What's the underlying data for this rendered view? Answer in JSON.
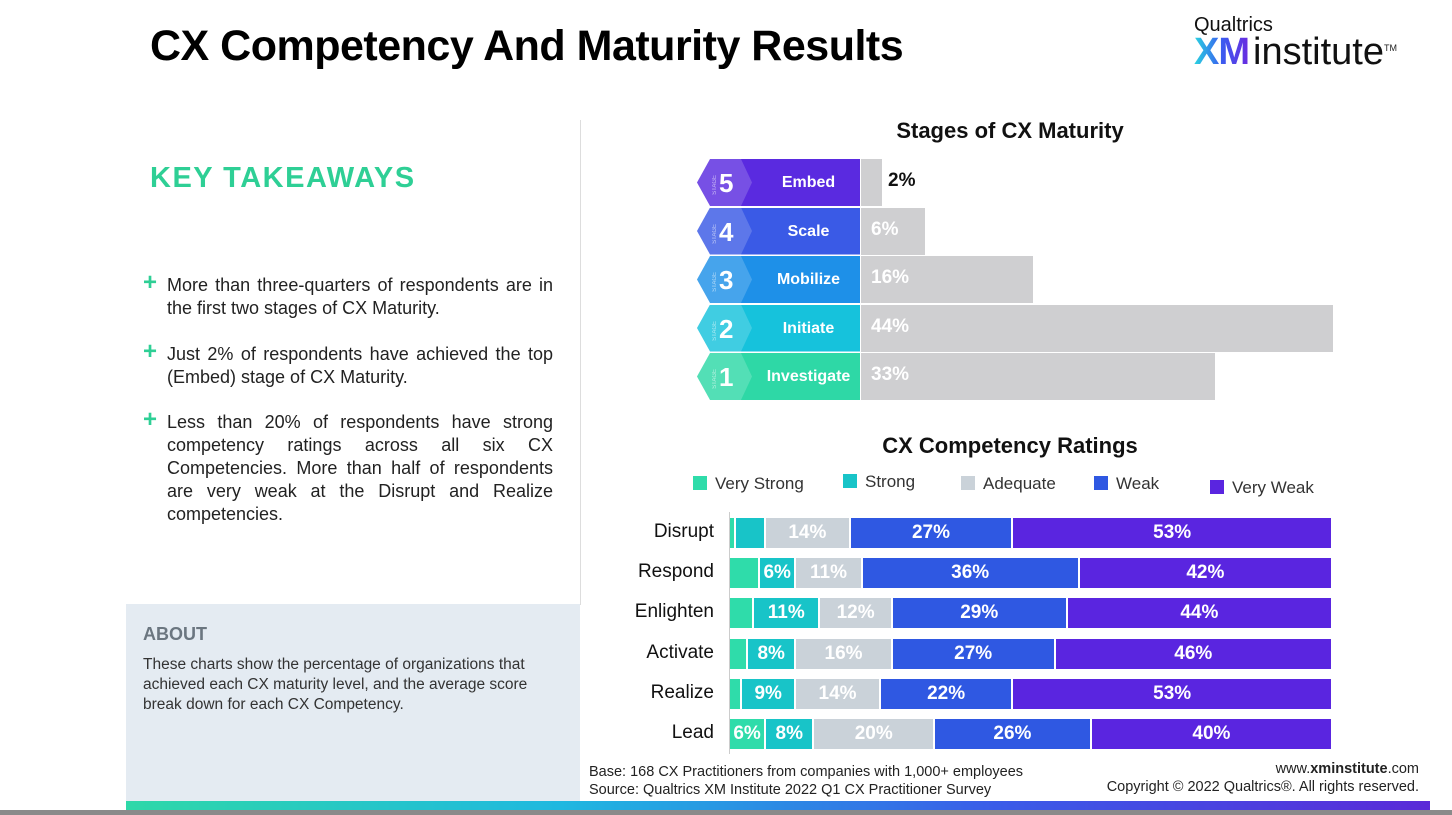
{
  "title": "CX Competency And Maturity Results",
  "logo": {
    "top": "Qualtrics",
    "xm": "XM",
    "institute": "institute",
    "tm": "TM"
  },
  "takeaways": {
    "heading": "KEY TAKEAWAYS",
    "bullets": [
      "More than three-quarters of respondents are in the first two stages of CX Maturity.",
      "Just 2% of respondents have achieved the top (Embed) stage of CX Maturity.",
      "Less than 20% of respondents have strong competency ratings across all six CX Competencies. More than half of respondents are very weak at the Disrupt and Realize competencies."
    ],
    "bullet_icon": "+"
  },
  "about": {
    "heading": "ABOUT",
    "text": "These charts show the percentage of organizations that achieved each CX maturity level, and the average score break down for each CX Competency."
  },
  "chart_data": [
    {
      "type": "bar",
      "title": "Stages of CX Maturity",
      "stage_word": "STAGE",
      "categories": [
        "Embed",
        "Scale",
        "Mobilize",
        "Initiate",
        "Investigate"
      ],
      "stages": [
        "5",
        "4",
        "3",
        "2",
        "1"
      ],
      "values": [
        2,
        6,
        16,
        44,
        33
      ],
      "labels": [
        "2%",
        "6%",
        "16%",
        "44%",
        "33%"
      ],
      "stage_colors": [
        "#5a2ae0",
        "#3a5ae6",
        "#1e90e8",
        "#16c2dc",
        "#2ed8a6"
      ],
      "bar_color": "#cfcfd1"
    },
    {
      "type": "bar",
      "stacked": true,
      "orientation": "horizontal",
      "title": "CX Competency Ratings",
      "categories": [
        "Disrupt",
        "Respond",
        "Enlighten",
        "Activate",
        "Realize",
        "Lead"
      ],
      "legend": "top",
      "series": [
        {
          "name": "Very Strong",
          "color": "#2fdcaa",
          "values": [
            1,
            5,
            4,
            3,
            2,
            6
          ],
          "labels": [
            "",
            "",
            "",
            "",
            "",
            "6%"
          ]
        },
        {
          "name": "Strong",
          "color": "#18c4c8",
          "values": [
            5,
            6,
            11,
            8,
            9,
            8
          ],
          "labels": [
            "",
            "6%",
            "11%",
            "8%",
            "9%",
            "8%"
          ]
        },
        {
          "name": "Adequate",
          "color": "#cad2d9",
          "values": [
            14,
            11,
            12,
            16,
            14,
            20
          ],
          "labels": [
            "14%",
            "11%",
            "12%",
            "16%",
            "14%",
            "20%"
          ]
        },
        {
          "name": "Weak",
          "color": "#2f58e2",
          "values": [
            27,
            36,
            29,
            27,
            22,
            26
          ],
          "labels": [
            "27%",
            "36%",
            "29%",
            "27%",
            "22%",
            "26%"
          ]
        },
        {
          "name": "Very Weak",
          "color": "#5a25e0",
          "values": [
            53,
            42,
            44,
            46,
            53,
            40
          ],
          "labels": [
            "53%",
            "42%",
            "44%",
            "46%",
            "53%",
            "40%"
          ]
        }
      ]
    }
  ],
  "footer": {
    "base": "Base: 168 CX Practitioners from companies with 1,000+ employees",
    "source": "Source: Qualtrics XM Institute 2022 Q1 CX Practitioner Survey",
    "url_prefix": "www.",
    "url_bold": "xminstitute",
    "url_suffix": ".com",
    "copyright": "Copyright © 2022 Qualtrics®. All rights reserved."
  }
}
